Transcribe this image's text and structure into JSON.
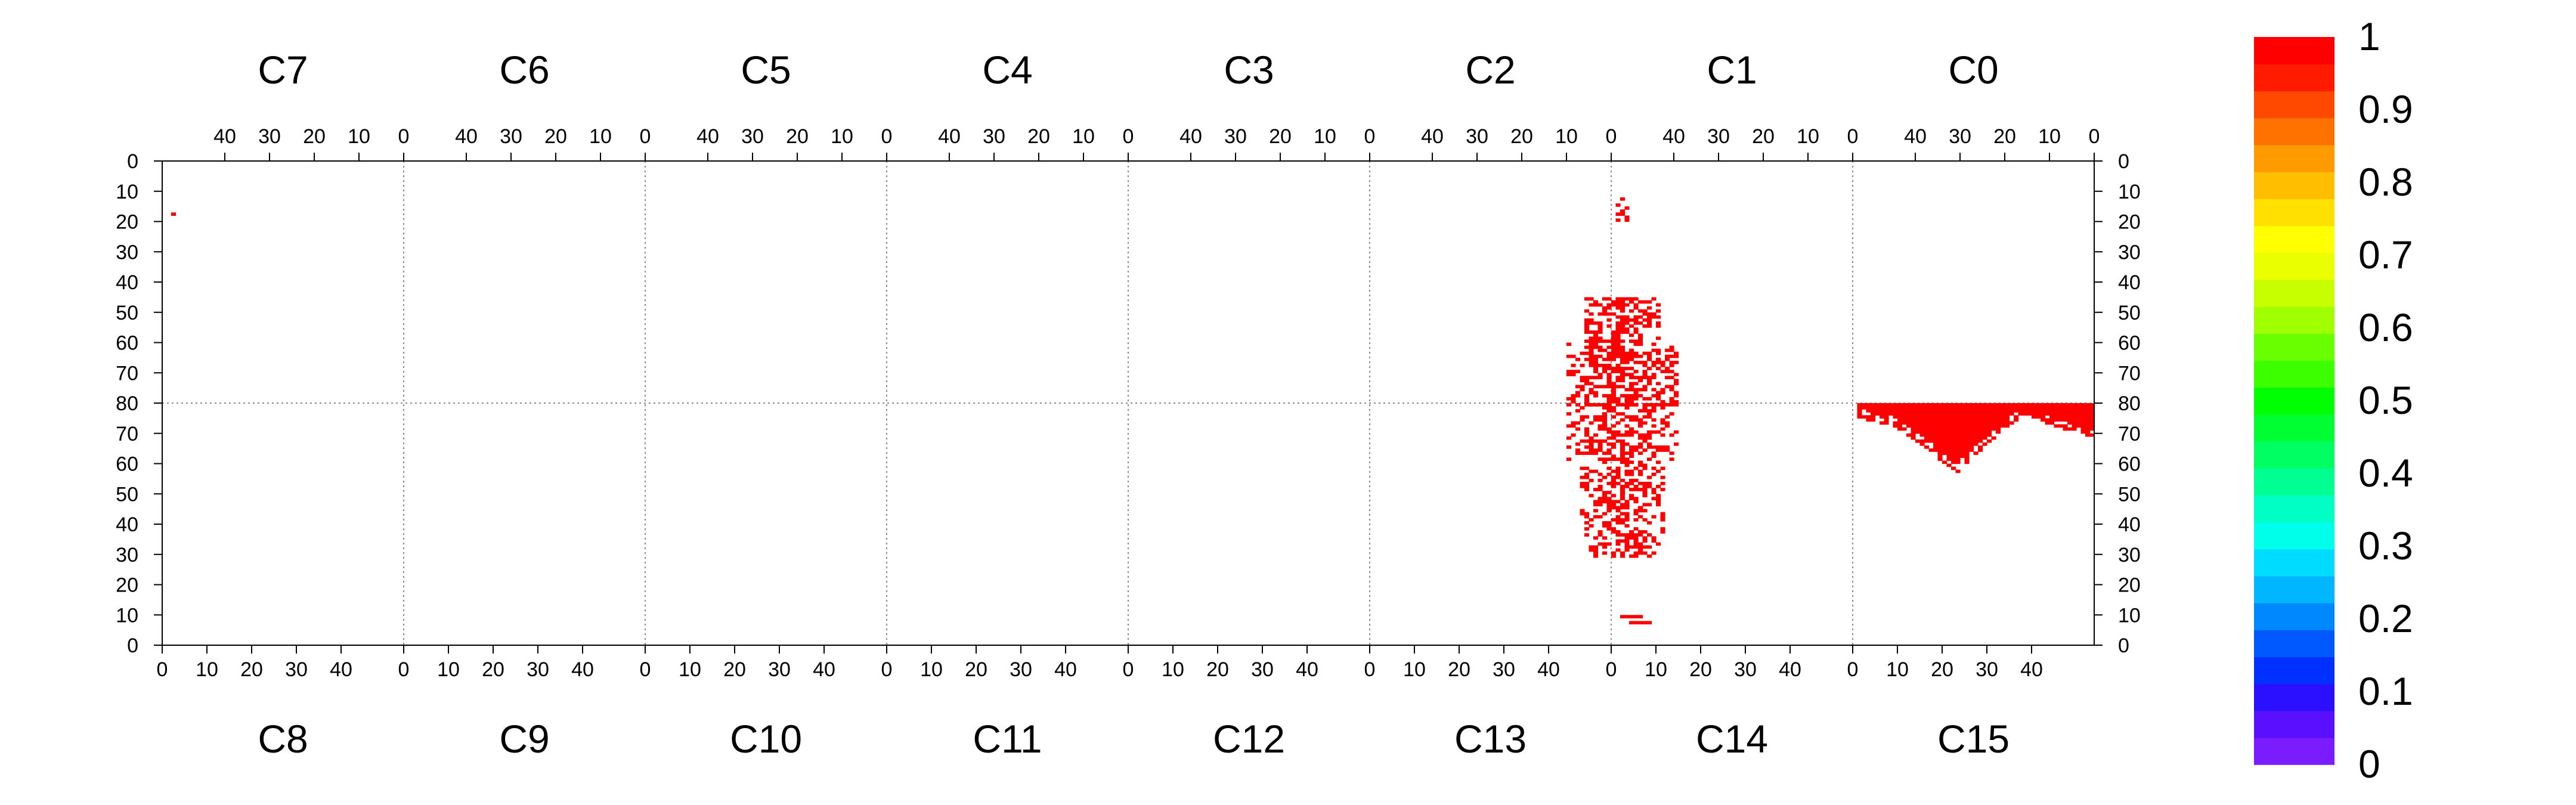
{
  "chart_data": {
    "type": "heatmap",
    "title": "",
    "xlabel": "",
    "ylabel": "",
    "top_panels": [
      "C7",
      "C6",
      "C5",
      "C4",
      "C3",
      "C2",
      "C1",
      "C0"
    ],
    "bottom_panels": [
      "C8",
      "C9",
      "C10",
      "C11",
      "C12",
      "C13",
      "C14",
      "C15"
    ],
    "top_x_ticks": [
      "40",
      "30",
      "20",
      "10",
      "0"
    ],
    "bottom_x_ticks": [
      "0",
      "10",
      "20",
      "30",
      "40"
    ],
    "x_range_per_panel": [
      0,
      54
    ],
    "y_ticks_upper": [
      "0",
      "10",
      "20",
      "30",
      "40",
      "50",
      "60",
      "70",
      "80"
    ],
    "y_ticks_lower": [
      "70",
      "60",
      "50",
      "40",
      "30",
      "20",
      "10",
      "0"
    ],
    "y_range_per_half": [
      0,
      80
    ],
    "colorbar": {
      "ticks": [
        "0",
        "0.1",
        "0.2",
        "0.3",
        "0.4",
        "0.5",
        "0.6",
        "0.7",
        "0.8",
        "0.9",
        "1"
      ],
      "range": [
        0,
        1
      ],
      "colors": [
        "#7a1cff",
        "#5a10ff",
        "#2a10ff",
        "#0030ff",
        "#0058ff",
        "#0088ff",
        "#00b6ff",
        "#00dcff",
        "#00ffea",
        "#00ffc4",
        "#00ff92",
        "#00ff62",
        "#00ff32",
        "#00ff00",
        "#3cff00",
        "#6aff00",
        "#a0ff00",
        "#c8ff00",
        "#eaff00",
        "#ffff00",
        "#ffe000",
        "#ffbe00",
        "#ff9a00",
        "#ff7200",
        "#ff4800",
        "#ff1a00",
        "#ff0000"
      ]
    },
    "value_color": "#ff0000",
    "cluster_a": {
      "panel_boundary": "C2/C1 and C13/C14",
      "half": "upper",
      "x_center_offset": 0,
      "y_range": [
        12,
        80
      ],
      "value": 1
    },
    "cluster_b": {
      "half": "lower",
      "panels": [
        "C13",
        "C14"
      ],
      "y_range": [
        8,
        80
      ],
      "value": 1
    },
    "cluster_c": {
      "panel": "C15",
      "half": "lower",
      "x_range": [
        1,
        54
      ],
      "y_range": [
        55,
        80
      ],
      "peak_x": 23,
      "value": 1
    },
    "stray_point": {
      "panel": "C7",
      "x": 52,
      "y": 17,
      "value": 1
    }
  }
}
